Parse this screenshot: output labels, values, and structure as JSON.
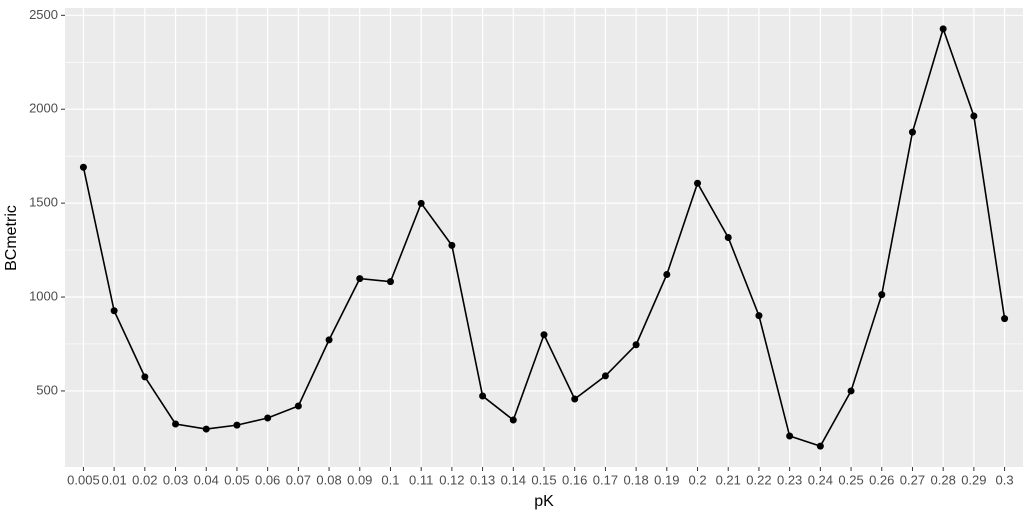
{
  "chart_data": {
    "type": "line",
    "x_label": "pK",
    "y_label": "BCmetric",
    "categories": [
      "0.005",
      "0.01",
      "0.02",
      "0.03",
      "0.04",
      "0.05",
      "0.06",
      "0.07",
      "0.08",
      "0.09",
      "0.1",
      "0.11",
      "0.12",
      "0.13",
      "0.14",
      "0.15",
      "0.16",
      "0.17",
      "0.18",
      "0.19",
      "0.2",
      "0.21",
      "0.22",
      "0.23",
      "0.24",
      "0.25",
      "0.26",
      "0.27",
      "0.28",
      "0.29",
      "0.3"
    ],
    "values": [
      1691,
      927,
      575,
      324,
      297,
      318,
      356,
      420,
      772,
      1098,
      1082,
      1499,
      1275,
      473,
      345,
      799,
      457,
      580,
      746,
      1120,
      1606,
      1317,
      901,
      260,
      206,
      500,
      1013,
      1878,
      2428,
      1964,
      885
    ],
    "color": "#000000",
    "ylim": [
      95,
      2539
    ],
    "yticks": [
      500,
      1000,
      1500,
      2000,
      2500
    ],
    "grid": true
  }
}
